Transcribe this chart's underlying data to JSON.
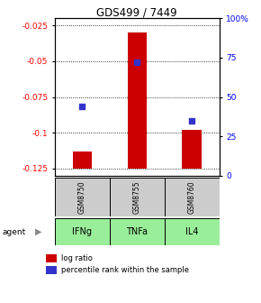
{
  "title": "GDS499 / 7449",
  "samples": [
    "GSM8750",
    "GSM8755",
    "GSM8760"
  ],
  "agents": [
    "IFNg",
    "TNFa",
    "IL4"
  ],
  "log_ratios": [
    -0.113,
    -0.03,
    -0.098
  ],
  "percentile_ranks": [
    44,
    72,
    35
  ],
  "ylim_left": [
    -0.13,
    -0.02
  ],
  "bar_bottom": -0.125,
  "yticks_left": [
    -0.125,
    -0.1,
    -0.075,
    -0.05,
    -0.025
  ],
  "yticks_right": [
    0,
    25,
    50,
    75,
    100
  ],
  "bar_color": "#cc0000",
  "dot_color": "#3333cc",
  "agent_color": "#99ee99",
  "sample_bg": "#cccccc",
  "legend_bar_label": "log ratio",
  "legend_dot_label": "percentile rank within the sample",
  "bar_width": 0.35
}
